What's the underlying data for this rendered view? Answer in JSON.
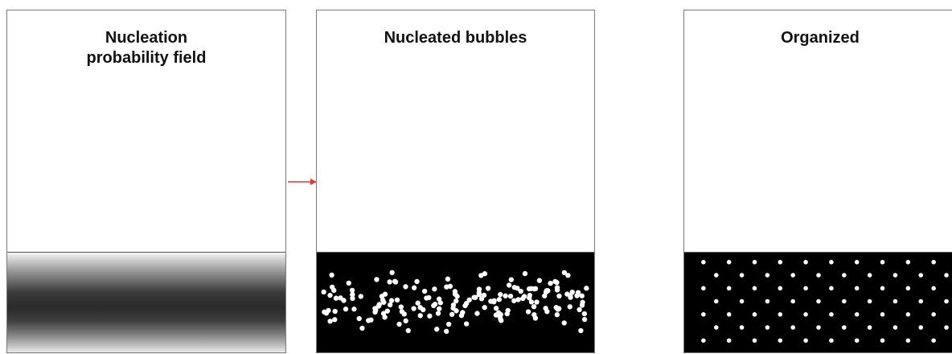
{
  "panels": [
    {
      "title": "Nucleation\nprobability field"
    },
    {
      "title": "Nucleated bubbles"
    },
    {
      "title": "Organized"
    }
  ],
  "colors": {
    "frame": "#7a7a7a",
    "strip_background": "#000000",
    "bubble": "#ffffff",
    "arrow": "#e03c31"
  }
}
